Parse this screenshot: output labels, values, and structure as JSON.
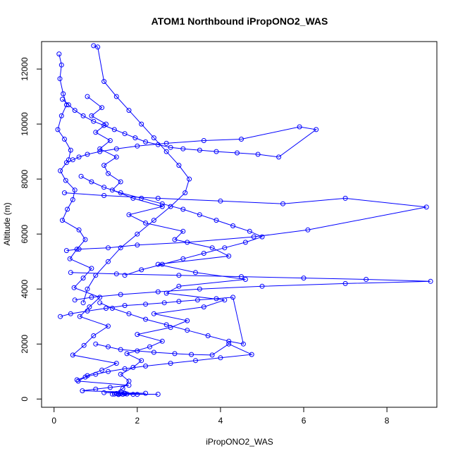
{
  "chart_data": {
    "type": "scatter",
    "title": "ATOM1 Northbound iPropONO2_WAS",
    "xlabel": "iPropONO2_WAS",
    "ylabel": "Altitude (m)",
    "xlim": [
      -0.3,
      9.2
    ],
    "ylim": [
      -300,
      13000
    ],
    "xticks": [
      0,
      2,
      4,
      6,
      8
    ],
    "yticks": [
      0,
      2000,
      4000,
      6000,
      8000,
      10000,
      12000
    ],
    "xtick_labels": [
      "0",
      "2",
      "4",
      "6",
      "8"
    ],
    "ytick_labels": [
      "0",
      "2000",
      "4000",
      "6000",
      "8000",
      "10000",
      "12000"
    ],
    "grid": false,
    "legend": "none",
    "color": "#0000ff",
    "marker": "open-circle",
    "connected": true,
    "series": [
      {
        "x": [
          0.12,
          0.18,
          0.14,
          0.22,
          0.3,
          0.18,
          0.09,
          0.25,
          0.4,
          0.35,
          0.15,
          0.28,
          0.5,
          0.45,
          0.32,
          0.2,
          0.6,
          0.75,
          0.55,
          0.38,
          0.9,
          0.7,
          0.48,
          1.1,
          0.85,
          0.62,
          1.3,
          0.95,
          0.72,
          0.45,
          1.5,
          1.15,
          0.8,
          0.58,
          1.8,
          1.35,
          1.0,
          0.68,
          1.6,
          1.2,
          2.2,
          1.7,
          1.4,
          2.5,
          1.9,
          1.55,
          2.0,
          1.65,
          1.45,
          1.75,
          1.55,
          1.6,
          1.5,
          1.7
        ],
        "y": [
          12550,
          12150,
          11650,
          11100,
          10700,
          10300,
          9800,
          9450,
          9050,
          8700,
          8300,
          7950,
          7600,
          7250,
          6900,
          6500,
          6150,
          5800,
          5450,
          5100,
          4750,
          4400,
          4050,
          3700,
          3350,
          3000,
          2650,
          2300,
          1950,
          1600,
          1300,
          1050,
          850,
          650,
          500,
          420,
          360,
          300,
          260,
          230,
          210,
          195,
          180,
          175,
          170,
          165,
          170,
          175,
          180,
          185,
          190,
          195,
          200,
          210
        ]
      },
      {
        "x": [
          1.5,
          1.65,
          1.8,
          1.6,
          1.9,
          2.1,
          1.75,
          2.3,
          2.6,
          2.0,
          2.8,
          3.2,
          2.4,
          3.6,
          4.1,
          2.7,
          3.0,
          4.6,
          3.4,
          2.5,
          4.2,
          3.8,
          2.9,
          3.1,
          2.2,
          1.8,
          2.6,
          1.9,
          1.4,
          1.6,
          1.3,
          1.2,
          1.5,
          1.1,
          1.35,
          1.0,
          1.25,
          0.9,
          1.15,
          0.8
        ],
        "y": [
          200,
          380,
          650,
          900,
          1150,
          1400,
          1650,
          1900,
          2100,
          2350,
          2600,
          2850,
          3100,
          3350,
          3600,
          3850,
          4100,
          4350,
          4600,
          4900,
          5200,
          5500,
          5800,
          6100,
          6400,
          6700,
          7000,
          7300,
          7600,
          7900,
          8200,
          8500,
          8800,
          9100,
          9400,
          9700,
          10000,
          10300,
          10600,
          11000
        ]
      },
      {
        "x": [
          0.2,
          0.35,
          0.5,
          0.7,
          0.95,
          1.2,
          1.45,
          1.7,
          1.95,
          2.2,
          2.5,
          2.8,
          3.1,
          3.5,
          3.9,
          4.4,
          4.9,
          5.4,
          6.3,
          5.9,
          4.5,
          3.6,
          2.7,
          2.0,
          1.5,
          1.1,
          0.8,
          0.6,
          0.45,
          0.3
        ],
        "y": [
          10900,
          10700,
          10500,
          10300,
          10100,
          9950,
          9800,
          9650,
          9500,
          9350,
          9250,
          9150,
          9100,
          9050,
          9000,
          8950,
          8900,
          8800,
          9800,
          9900,
          9450,
          9400,
          9300,
          9200,
          9100,
          9000,
          8900,
          8800,
          8700,
          8600
        ]
      },
      {
        "x": [
          0.25,
          1.2,
          2.5,
          4.0,
          5.5,
          7.0,
          8.95,
          6.1,
          4.8,
          3.2,
          2.0,
          1.3,
          0.6,
          0.3
        ],
        "y": [
          7500,
          7400,
          7300,
          7200,
          7100,
          7300,
          6980,
          6150,
          5900,
          5700,
          5600,
          5500,
          5450,
          5400
        ]
      },
      {
        "x": [
          0.4,
          1.5,
          3.0,
          4.5,
          6.0,
          7.5,
          9.05,
          7.0,
          5.0,
          3.5,
          2.5,
          1.6,
          0.9,
          0.5
        ],
        "y": [
          4600,
          4550,
          4500,
          4450,
          4400,
          4350,
          4280,
          4200,
          4100,
          4000,
          3900,
          3800,
          3700,
          3600
        ]
      },
      {
        "x": [
          1.0,
          1.3,
          1.6,
          2.0,
          2.4,
          2.9,
          3.3,
          3.8,
          4.2,
          4.75,
          4.0,
          3.4,
          2.8,
          2.2,
          1.7,
          1.3,
          1.0,
          0.75,
          0.55
        ],
        "y": [
          2000,
          1900,
          1800,
          1750,
          1700,
          1650,
          1620,
          1600,
          2000,
          1620,
          1500,
          1400,
          1300,
          1200,
          1100,
          1000,
          900,
          800,
          700
        ]
      },
      {
        "x": [
          0.95,
          1.05,
          1.2,
          1.5,
          1.8,
          2.1,
          2.4,
          2.7,
          3.0,
          3.25,
          3.15,
          2.8,
          2.4,
          2.0,
          1.6,
          1.3,
          1.0,
          0.8,
          0.7
        ],
        "y": [
          12850,
          12800,
          11550,
          11000,
          10500,
          10000,
          9500,
          9000,
          8500,
          8000,
          7500,
          7000,
          6500,
          6000,
          5500,
          5000,
          4500,
          4000,
          3500
        ]
      },
      {
        "x": [
          0.65,
          0.9,
          1.2,
          1.6,
          2.1,
          2.6,
          3.1,
          3.5,
          3.9,
          4.3,
          4.7,
          5.0,
          4.6,
          4.1,
          3.6,
          3.1,
          2.6,
          2.1,
          1.7
        ],
        "y": [
          8100,
          7900,
          7700,
          7500,
          7300,
          7100,
          6900,
          6700,
          6500,
          6300,
          6100,
          5900,
          5700,
          5500,
          5300,
          5100,
          4900,
          4700,
          4500
        ]
      },
      {
        "x": [
          0.15,
          0.4,
          0.8,
          1.25,
          1.7,
          2.2,
          2.65,
          3.0,
          3.45,
          3.9,
          4.3,
          4.55,
          4.2,
          3.7,
          3.2,
          2.7,
          2.2,
          1.8,
          1.4,
          1.1
        ],
        "y": [
          3000,
          3100,
          3200,
          3300,
          3400,
          3450,
          3500,
          3550,
          3600,
          3650,
          3700,
          2000,
          2100,
          2300,
          2500,
          2700,
          2900,
          3100,
          3300,
          3500
        ]
      }
    ]
  }
}
